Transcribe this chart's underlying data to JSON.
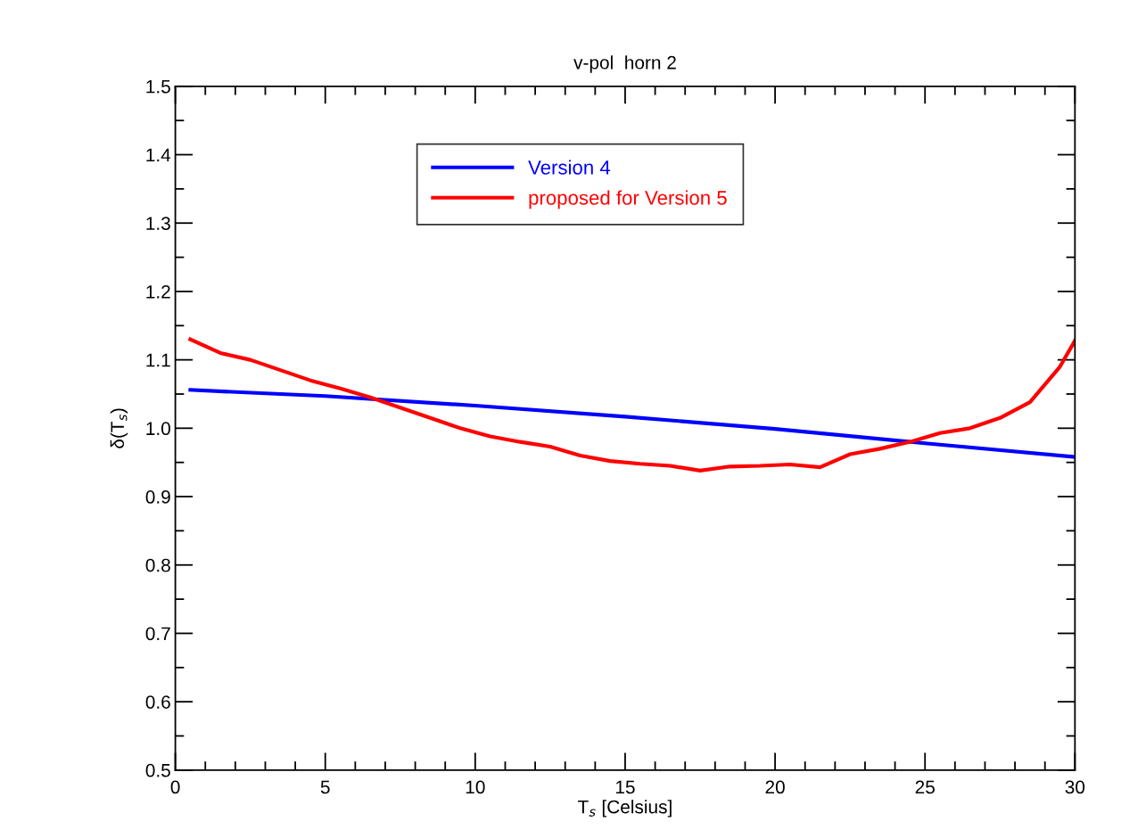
{
  "chart_data": {
    "type": "line",
    "title": "v-pol  horn 2",
    "xlabel": "T$_{s}$ [Celsius]",
    "ylabel": "δ(T$_{s}$)",
    "xlim": [
      0,
      30
    ],
    "xticks": [
      0,
      5,
      10,
      15,
      20,
      25,
      30
    ],
    "ylim": [
      0.5,
      1.5
    ],
    "yticks": [
      0.5,
      0.6,
      0.7,
      0.8,
      0.9,
      {
        "value": 1.0,
        "label": "1.0"
      },
      1.1,
      1.2,
      1.3,
      1.4,
      1.5
    ],
    "grid": false,
    "legend": "top",
    "line_style": "solid",
    "series": [
      {
        "name": "Version 4",
        "color": "#0000ff",
        "x": [
          0.5,
          5,
          10,
          15,
          20,
          25,
          30
        ],
        "values": [
          1.056,
          1.047,
          1.033,
          1.017,
          0.999,
          0.978,
          0.958
        ]
      },
      {
        "name": "proposed for Version 5",
        "color": "#ff0000",
        "x": [
          0.5,
          1.5,
          2.5,
          3.5,
          4.5,
          5.5,
          6.5,
          7.5,
          8.5,
          9.5,
          10.5,
          11.5,
          12.5,
          13.5,
          14.5,
          15.5,
          16.5,
          17.5,
          18.5,
          19.5,
          20.5,
          21.5,
          22.5,
          23.5,
          24.5,
          25.5,
          26.5,
          27.5,
          28.5,
          29.5,
          30
        ],
        "values": [
          1.13,
          1.11,
          1.1,
          1.085,
          1.07,
          1.058,
          1.045,
          1.03,
          1.015,
          1.0,
          0.988,
          0.98,
          0.973,
          0.96,
          0.952,
          0.948,
          0.945,
          0.938,
          0.944,
          0.945,
          0.947,
          0.943,
          0.962,
          0.97,
          0.98,
          0.993,
          1.0,
          1.015,
          1.038,
          1.09,
          1.128
        ]
      }
    ]
  }
}
